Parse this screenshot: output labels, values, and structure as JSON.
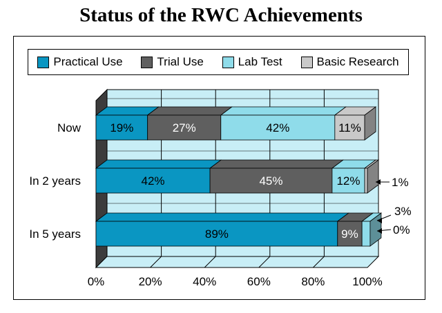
{
  "chart_data": {
    "type": "bar",
    "orientation": "horizontal",
    "stacked": true,
    "three_d": true,
    "title": "Status of the RWC Achievements",
    "categories": [
      "Now",
      "In 2 years",
      "In 5 years"
    ],
    "series": [
      {
        "name": "Practical Use",
        "color": "#0a96c2",
        "values": [
          19,
          42,
          89
        ],
        "labels": [
          "19%",
          "42%",
          "89%"
        ]
      },
      {
        "name": "Trial Use",
        "color": "#5f5f5f",
        "values": [
          27,
          45,
          9
        ],
        "labels": [
          "27%",
          "45%",
          "9%"
        ]
      },
      {
        "name": "Lab Test",
        "color": "#8fdcea",
        "values": [
          42,
          12,
          3
        ],
        "labels": [
          "42%",
          "12%",
          "3%"
        ]
      },
      {
        "name": "Basic Research",
        "color": "#c9c9c9",
        "values": [
          11,
          1,
          0
        ],
        "labels": [
          "11%",
          "1%",
          "0%"
        ]
      }
    ],
    "xlim": [
      0,
      100
    ],
    "x_ticks": [
      "0%",
      "20%",
      "40%",
      "60%",
      "80%",
      "100%"
    ],
    "grid": true,
    "legend_position": "top",
    "background_color": "#c8eef6"
  }
}
